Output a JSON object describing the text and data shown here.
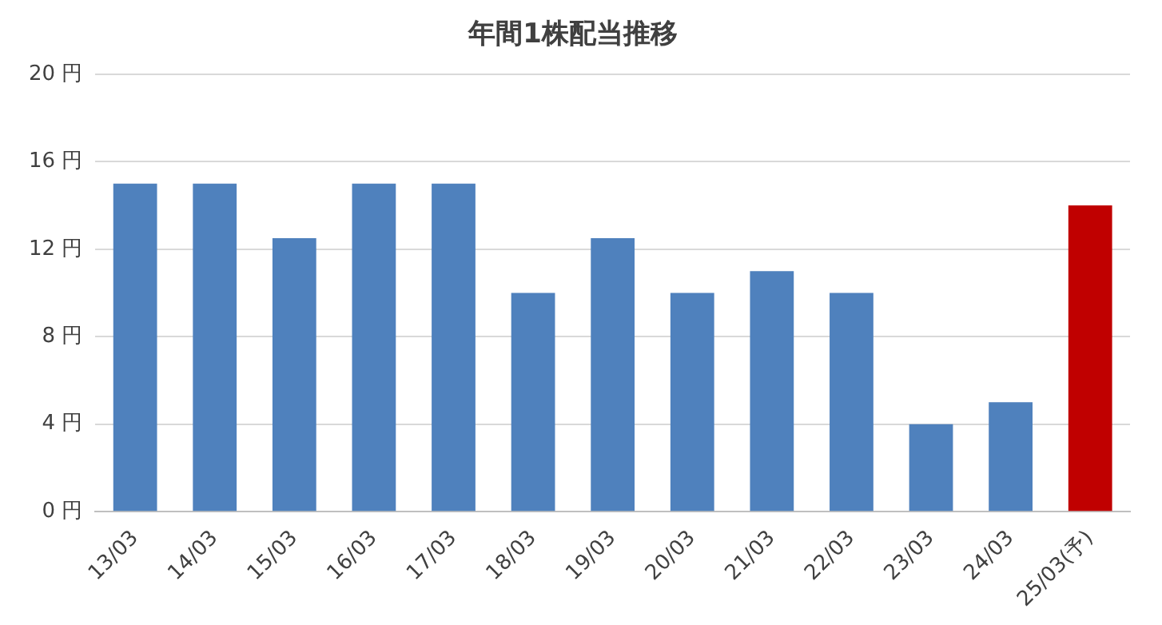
{
  "chart_data": {
    "type": "bar",
    "title": "年間1株配当推移",
    "categories": [
      "13/03",
      "14/03",
      "15/03",
      "16/03",
      "17/03",
      "18/03",
      "19/03",
      "20/03",
      "21/03",
      "22/03",
      "23/03",
      "24/03",
      "25/03(予)"
    ],
    "values": [
      15,
      15,
      12.5,
      15,
      15,
      10,
      12.5,
      10,
      11,
      10,
      4,
      5,
      14
    ],
    "colors": [
      "#4f81bd",
      "#4f81bd",
      "#4f81bd",
      "#4f81bd",
      "#4f81bd",
      "#4f81bd",
      "#4f81bd",
      "#4f81bd",
      "#4f81bd",
      "#4f81bd",
      "#4f81bd",
      "#4f81bd",
      "#c00000"
    ],
    "ylim": [
      0,
      20
    ],
    "yticks": [
      {
        "value": 0,
        "label": "0 円"
      },
      {
        "value": 4,
        "label": "4 円"
      },
      {
        "value": 8,
        "label": "8 円"
      },
      {
        "value": 12,
        "label": "12 円"
      },
      {
        "value": 16,
        "label": "16 円"
      },
      {
        "value": 20,
        "label": "20 円"
      }
    ],
    "grid": "y",
    "legend": false
  }
}
